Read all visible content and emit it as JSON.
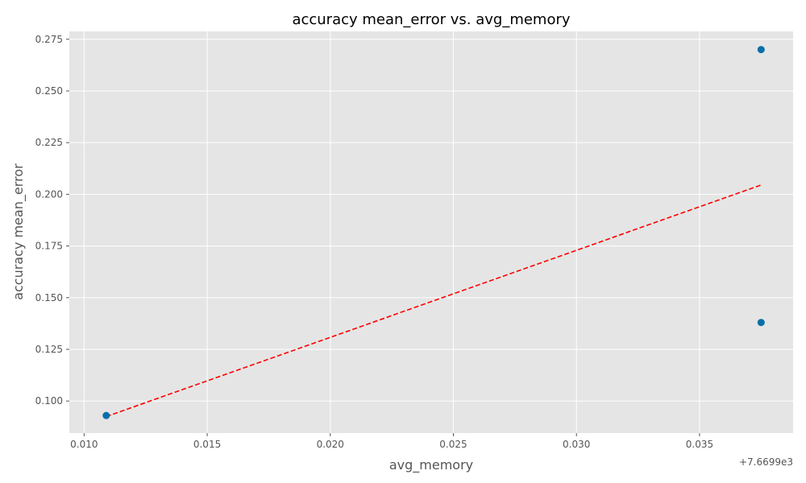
{
  "chart_data": {
    "type": "scatter",
    "title": "accuracy mean_error vs. avg_memory",
    "xlabel": "avg_memory",
    "ylabel": "accuracy mean_error",
    "x_offset_label": "+7.6699e3",
    "xlim": [
      0.0094,
      0.0388
    ],
    "ylim": [
      0.0845,
      0.2788
    ],
    "xticks": [
      0.01,
      0.015,
      0.02,
      0.025,
      0.03,
      0.035
    ],
    "xtick_labels": [
      "0.010",
      "0.015",
      "0.020",
      "0.025",
      "0.030",
      "0.035"
    ],
    "yticks": [
      0.1,
      0.125,
      0.15,
      0.175,
      0.2,
      0.225,
      0.25,
      0.275
    ],
    "ytick_labels": [
      "0.100",
      "0.125",
      "0.150",
      "0.175",
      "0.200",
      "0.225",
      "0.250",
      "0.275"
    ],
    "grid": true,
    "points": [
      {
        "x": 0.0109,
        "y": 0.093
      },
      {
        "x": 0.0375,
        "y": 0.27
      },
      {
        "x": 0.0375,
        "y": 0.138
      }
    ],
    "trendline": {
      "style": "dashed",
      "x": [
        0.0109,
        0.0375
      ],
      "y": [
        0.0925,
        0.2045
      ]
    },
    "colors": {
      "background": "#e5e5e5",
      "grid": "#ffffff",
      "points": "#0a6fa8",
      "trendline": "#ff0000"
    }
  }
}
